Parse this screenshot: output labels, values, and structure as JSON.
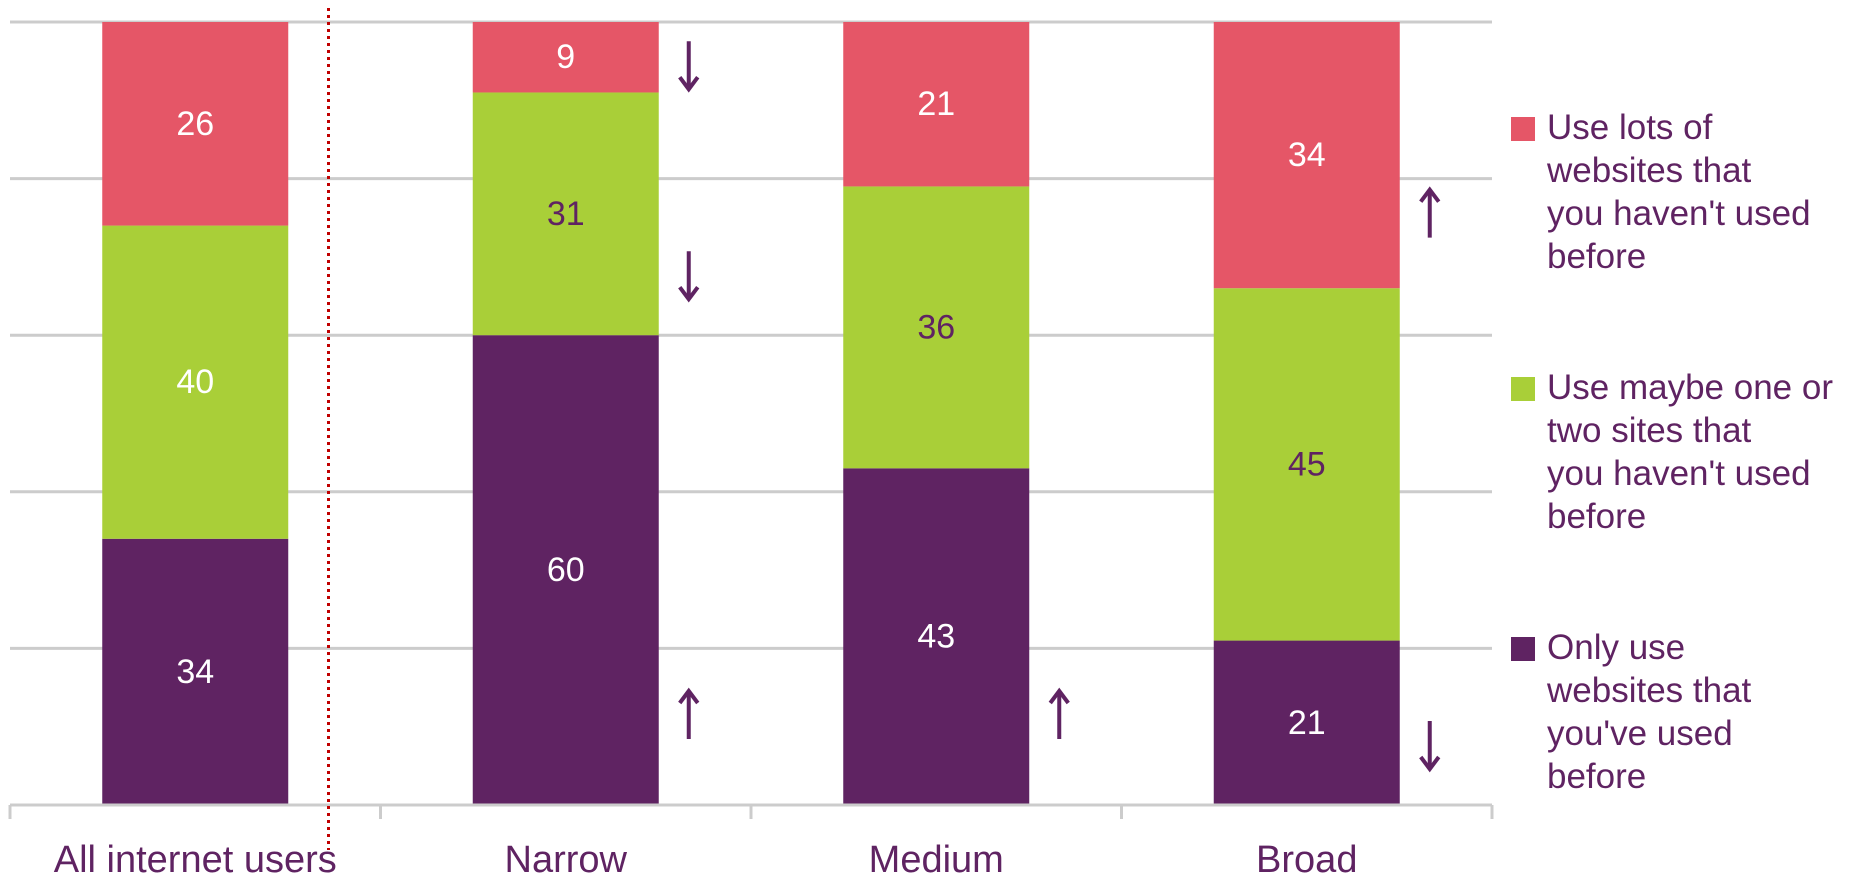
{
  "chart_data": {
    "type": "bar",
    "stacked": true,
    "categories": [
      "All internet users",
      "Narrow",
      "Medium",
      "Broad"
    ],
    "series": [
      {
        "name": "Only use websites that you've used before",
        "values": [
          34,
          60,
          43,
          21
        ],
        "color": "#5f2362",
        "label_colors": [
          "#ffffff",
          "#ffffff",
          "#ffffff",
          "#ffffff"
        ]
      },
      {
        "name": "Use maybe one or two sites that you haven't used before",
        "values": [
          40,
          31,
          36,
          45
        ],
        "color": "#a9cf38",
        "label_colors": [
          "#ffffff",
          "#5f2362",
          "#5f2362",
          "#5f2362"
        ]
      },
      {
        "name": "Use lots of websites that you haven't used before",
        "values": [
          26,
          9,
          21,
          34
        ],
        "color": "#e55667",
        "label_colors": [
          "#ffffff",
          "#ffffff",
          "#ffffff",
          "#ffffff"
        ]
      }
    ],
    "ylim": [
      0,
      100
    ],
    "gridlines": [
      20,
      40,
      60,
      80,
      100
    ],
    "grid": true,
    "legend_position": "right",
    "legend_order": [
      "Use lots of websites that you haven't used before",
      "Use maybe one or two sites that you haven't used before",
      "Only use websites that you've used before"
    ],
    "divider_after_category": "All internet users",
    "significance_markers": [
      {
        "category": "Narrow",
        "series": "Use lots of websites that you haven't used before",
        "direction": "down"
      },
      {
        "category": "Narrow",
        "series": "Use maybe one or two sites that you haven't used before",
        "direction": "down"
      },
      {
        "category": "Narrow",
        "series": "Only use websites that you've used before",
        "direction": "up"
      },
      {
        "category": "Medium",
        "series": "Only use websites that you've used before",
        "direction": "up"
      },
      {
        "category": "Broad",
        "series": "Use lots of websites that you haven't used before",
        "direction": "up"
      },
      {
        "category": "Broad",
        "series": "Only use websites that you've used before",
        "direction": "down"
      }
    ],
    "colors": {
      "arrow": "#5f2362",
      "divider": "#c00000",
      "grid": "#cccccc",
      "text": "#5f2362"
    }
  }
}
